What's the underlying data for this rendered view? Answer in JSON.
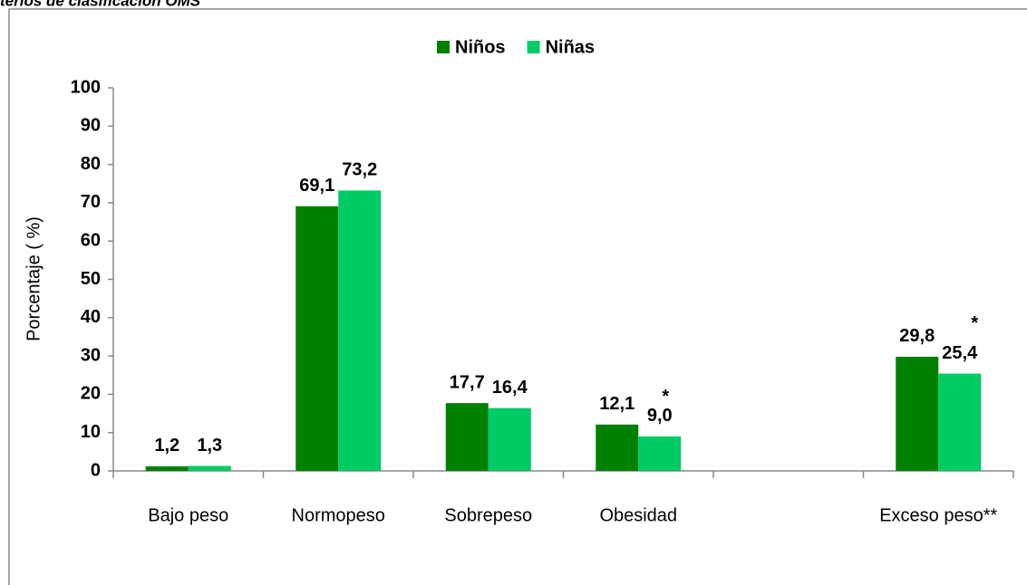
{
  "chart_data": {
    "type": "bar",
    "title": "terios de clasificación  OMS",
    "y_label": "Porcentaje ( %)",
    "categories": [
      "Bajo peso",
      "Normopeso",
      "Sobrepeso",
      "Obesidad",
      null,
      "Exceso peso**"
    ],
    "series": [
      {
        "name": "Niños",
        "color": "#008000",
        "values": [
          1.2,
          69.1,
          17.7,
          12.1,
          null,
          29.8
        ],
        "value_labels": [
          "1,2",
          "69,1",
          "17,7",
          "12,1",
          null,
          "29,8"
        ]
      },
      {
        "name": "Niñas",
        "color": "#00cc66",
        "values": [
          1.3,
          73.2,
          16.4,
          9.0,
          null,
          25.4
        ],
        "value_labels": [
          "1,3",
          "73,2",
          "16,4",
          "9,0",
          null,
          "25,4"
        ]
      }
    ],
    "annotations": [
      "*",
      "*"
    ],
    "ylim": [
      0,
      100
    ],
    "yticks": [
      0,
      10,
      20,
      30,
      40,
      50,
      60,
      70,
      80,
      90,
      100
    ],
    "legend": "top"
  }
}
